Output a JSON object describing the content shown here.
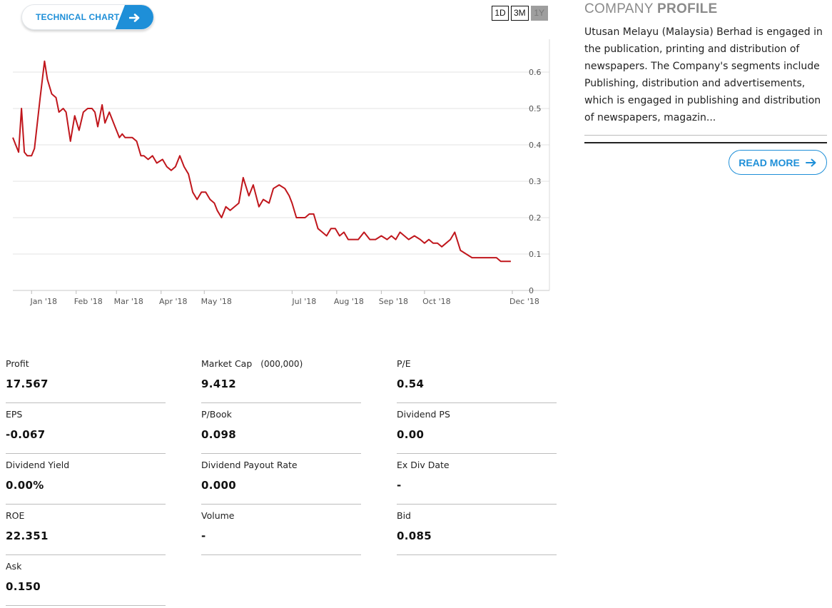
{
  "technical_chart_button": {
    "label": "TECHNICAL CHART",
    "icon": "arrow-right-icon",
    "color": "#1e8fd8"
  },
  "range_buttons": [
    {
      "label": "1D",
      "active": false
    },
    {
      "label": "3M",
      "active": false
    },
    {
      "label": "1Y",
      "active": true
    }
  ],
  "chart_data": {
    "type": "line",
    "title": "",
    "xlabel": "",
    "ylabel": "",
    "line_color": "#c0161c",
    "ylim": [
      0,
      0.7
    ],
    "yticks": [
      "0",
      "0.1",
      "0.2",
      "0.3",
      "0.4",
      "0.5",
      "0.6"
    ],
    "xticks": [
      "Jan '18",
      "Feb '18",
      "Mar '18",
      "Apr '18",
      "May '18",
      "Jul '18",
      "Aug '18",
      "Sep '18",
      "Oct '18",
      "Dec '18"
    ],
    "grid": true,
    "series": [
      {
        "x": [
          "2017-12-19",
          "2017-12-21",
          "2017-12-23",
          "2017-12-25",
          "2017-12-27",
          "2017-12-29",
          "2018-01-01",
          "2018-01-03",
          "2018-01-07",
          "2018-01-10",
          "2018-01-12",
          "2018-01-15",
          "2018-01-18",
          "2018-01-20",
          "2018-01-23",
          "2018-01-25",
          "2018-01-28",
          "2018-01-31",
          "2018-02-03",
          "2018-02-06",
          "2018-02-09",
          "2018-02-12",
          "2018-02-14",
          "2018-02-16",
          "2018-02-19",
          "2018-02-21",
          "2018-02-24",
          "2018-02-28",
          "2018-03-03",
          "2018-03-05",
          "2018-03-07",
          "2018-03-09",
          "2018-03-12",
          "2018-03-15",
          "2018-03-18",
          "2018-03-20",
          "2018-03-23",
          "2018-03-26",
          "2018-03-29",
          "2018-04-02",
          "2018-04-05",
          "2018-04-08",
          "2018-04-11",
          "2018-04-14",
          "2018-04-17",
          "2018-04-20",
          "2018-04-23",
          "2018-04-26",
          "2018-04-29",
          "2018-05-02",
          "2018-05-05",
          "2018-05-08",
          "2018-05-10",
          "2018-05-13",
          "2018-05-16",
          "2018-05-19",
          "2018-05-22",
          "2018-05-25",
          "2018-05-28",
          "2018-06-01",
          "2018-06-04",
          "2018-06-08",
          "2018-06-11",
          "2018-06-15",
          "2018-06-18",
          "2018-06-22",
          "2018-06-26",
          "2018-06-29",
          "2018-07-01",
          "2018-07-04",
          "2018-07-07",
          "2018-07-10",
          "2018-07-13",
          "2018-07-16",
          "2018-07-19",
          "2018-07-22",
          "2018-07-25",
          "2018-07-28",
          "2018-07-31",
          "2018-08-03",
          "2018-08-06",
          "2018-08-09",
          "2018-08-12",
          "2018-08-16",
          "2018-08-20",
          "2018-08-24",
          "2018-08-28",
          "2018-09-01",
          "2018-09-05",
          "2018-09-08",
          "2018-09-11",
          "2018-09-14",
          "2018-09-17",
          "2018-09-20",
          "2018-09-24",
          "2018-09-28",
          "2018-10-01",
          "2018-10-04",
          "2018-10-07",
          "2018-10-10",
          "2018-10-13",
          "2018-10-16",
          "2018-10-19",
          "2018-10-22",
          "2018-10-26",
          "2018-10-30",
          "2018-11-03",
          "2018-11-07",
          "2018-11-11",
          "2018-11-15",
          "2018-11-18",
          "2018-11-20",
          "2018-11-23",
          "2018-11-26",
          "2018-11-28",
          "2018-11-30"
        ],
        "values": [
          0.42,
          0.4,
          0.38,
          0.5,
          0.38,
          0.37,
          0.37,
          0.39,
          0.53,
          0.63,
          0.58,
          0.54,
          0.53,
          0.49,
          0.5,
          0.49,
          0.41,
          0.48,
          0.44,
          0.49,
          0.5,
          0.5,
          0.49,
          0.45,
          0.51,
          0.46,
          0.49,
          0.45,
          0.42,
          0.43,
          0.42,
          0.42,
          0.42,
          0.41,
          0.37,
          0.37,
          0.36,
          0.37,
          0.35,
          0.36,
          0.34,
          0.33,
          0.34,
          0.37,
          0.34,
          0.32,
          0.27,
          0.25,
          0.27,
          0.27,
          0.25,
          0.24,
          0.22,
          0.2,
          0.23,
          0.22,
          0.23,
          0.24,
          0.31,
          0.26,
          0.29,
          0.23,
          0.25,
          0.24,
          0.28,
          0.29,
          0.28,
          0.26,
          0.24,
          0.2,
          0.2,
          0.2,
          0.21,
          0.21,
          0.17,
          0.16,
          0.15,
          0.17,
          0.17,
          0.15,
          0.16,
          0.14,
          0.14,
          0.14,
          0.16,
          0.14,
          0.14,
          0.15,
          0.14,
          0.15,
          0.14,
          0.16,
          0.15,
          0.14,
          0.15,
          0.14,
          0.13,
          0.14,
          0.13,
          0.13,
          0.12,
          0.13,
          0.14,
          0.16,
          0.11,
          0.1,
          0.09,
          0.09,
          0.09,
          0.09,
          0.09,
          0.09,
          0.08,
          0.08,
          0.08,
          0.08
        ]
      }
    ]
  },
  "profile": {
    "title_light": "COMPANY",
    "title_bold": "PROFILE",
    "description": "Utusan Melayu (Malaysia) Berhad is engaged in the publication, printing and distribution of newspapers. The Company's segments include Publishing, distribution and advertisements, which is engaged in publishing and distribution of newspapers, magazin...",
    "read_more": "READ MORE",
    "read_more_icon": "arrow-right-icon"
  },
  "stats": [
    {
      "label": "Profit",
      "value": "17.567"
    },
    {
      "label": "Market Cap",
      "unit": "(000,000)",
      "value": "9.412"
    },
    {
      "label": "P/E",
      "value": "0.54"
    },
    {
      "label": "EPS",
      "value": "-0.067"
    },
    {
      "label": "P/Book",
      "value": "0.098"
    },
    {
      "label": "Dividend PS",
      "value": "0.00"
    },
    {
      "label": "Dividend Yield",
      "value": "0.00%"
    },
    {
      "label": "Dividend Payout Rate",
      "value": "0.000"
    },
    {
      "label": "Ex Div Date",
      "value": "-"
    },
    {
      "label": "ROE",
      "value": "22.351"
    },
    {
      "label": "Volume",
      "value": "-"
    },
    {
      "label": "Bid",
      "value": "0.085"
    },
    {
      "label": "Ask",
      "value": "0.150"
    }
  ]
}
